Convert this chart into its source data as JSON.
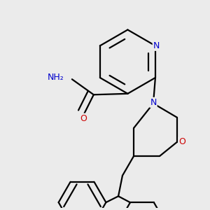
{
  "background_color": "#ebebeb",
  "atom_colors": {
    "N": "#0000cd",
    "O": "#cc0000",
    "C": "#000000"
  },
  "bond_color": "#000000",
  "bond_width": 1.6,
  "dbo": 0.018,
  "figsize": [
    3.0,
    3.0
  ],
  "dpi": 100
}
